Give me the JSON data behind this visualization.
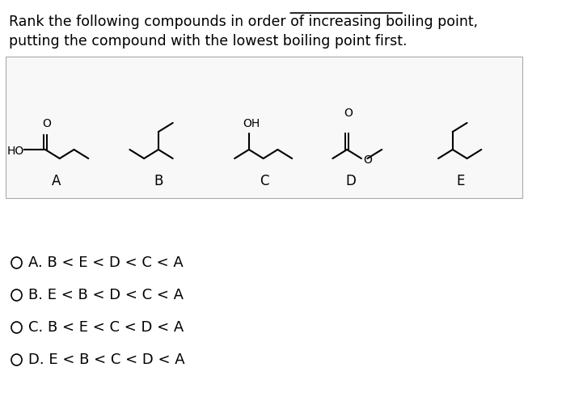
{
  "title_line1": "Rank the following compounds in order of increasing boiling point,",
  "title_line2": "putting the compound with the lowest boiling point first.",
  "underline_word": "boiling point",
  "bg_color": "#ffffff",
  "text_color": "#000000",
  "choices": [
    "A. B < E < D < C < A",
    "B. E < B < D < C < A",
    "C. B < E < C < D < A",
    "D. E < B < C < D < A"
  ],
  "molecule_labels": [
    "A",
    "B",
    "C",
    "D",
    "E"
  ],
  "figsize": [
    7.0,
    5.17
  ],
  "dpi": 100
}
